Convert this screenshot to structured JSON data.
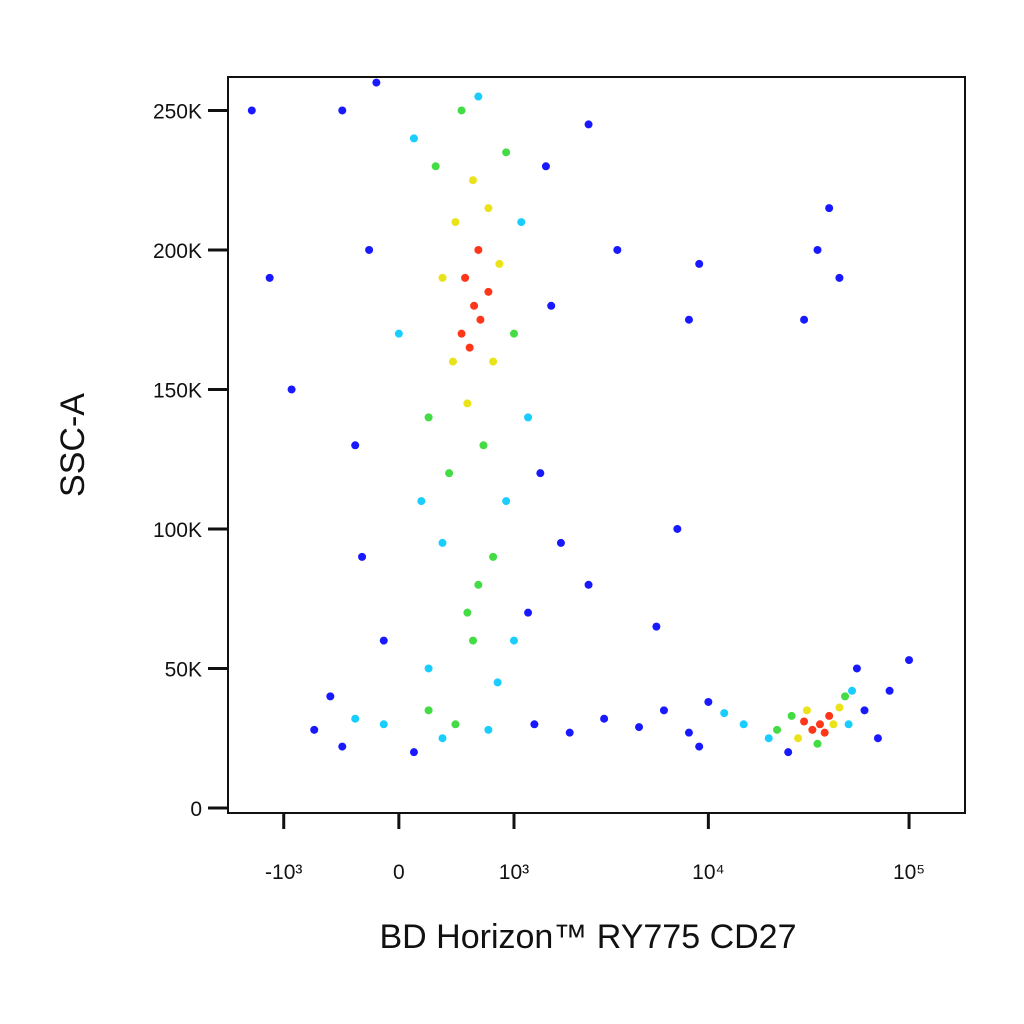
{
  "chart_data": {
    "type": "scatter",
    "x_label": "BD Horizon™ RY775 CD27",
    "y_label": "SSC-A",
    "xscale": "biexponential",
    "xlim": [
      -2000,
      190000
    ],
    "xticks": [
      {
        "value": -1000,
        "label": "-10³"
      },
      0,
      {
        "value": 1000,
        "label": "10³"
      },
      {
        "value": 10000,
        "label": "10⁴"
      },
      {
        "value": 100000,
        "label": "10⁵"
      }
    ],
    "ylim": [
      -1800,
      262000
    ],
    "yticks": [
      0,
      {
        "value": 50000,
        "label": "50K"
      },
      {
        "value": 100000,
        "label": "100K"
      },
      {
        "value": 150000,
        "label": "150K"
      },
      {
        "value": 200000,
        "label": "200K"
      },
      {
        "value": 250000,
        "label": "250K"
      }
    ],
    "series": [
      {
        "color": "#0000ff",
        "x": [
          -400,
          -200,
          1500,
          1600,
          -300,
          1400,
          -250,
          1800,
          -500,
          -650,
          -400,
          1300,
          2000,
          3000,
          4500,
          6000,
          8000,
          10000,
          9000,
          60000,
          80000,
          70000,
          25000,
          55000,
          -150,
          1200,
          -100,
          100,
          -1500,
          -1200,
          3500,
          9000,
          40000,
          7000,
          30000,
          2500,
          8000,
          45000,
          35000,
          -900,
          2500,
          5500,
          100000
        ],
        "y": [
          250000,
          200000,
          230000,
          180000,
          130000,
          120000,
          90000,
          95000,
          40000,
          28000,
          22000,
          30000,
          27000,
          32000,
          29000,
          35000,
          27000,
          38000,
          22000,
          35000,
          42000,
          25000,
          20000,
          50000,
          260000,
          70000,
          60000,
          20000,
          250000,
          190000,
          200000,
          195000,
          215000,
          100000,
          175000,
          245000,
          175000,
          190000,
          200000,
          150000,
          80000,
          65000,
          53000
        ]
      },
      {
        "color": "#00c8ff",
        "x": [
          100,
          1100,
          0,
          1200,
          150,
          900,
          300,
          1000,
          200,
          800,
          -100,
          -300,
          300,
          700,
          600,
          15000,
          52000,
          20000,
          50000,
          12000
        ],
        "y": [
          240000,
          210000,
          170000,
          140000,
          110000,
          110000,
          95000,
          60000,
          50000,
          45000,
          30000,
          32000,
          25000,
          28000,
          255000,
          30000,
          42000,
          25000,
          30000,
          34000
        ]
      },
      {
        "color": "#30d830",
        "x": [
          250,
          900,
          200,
          1000,
          450,
          650,
          350,
          600,
          500,
          750,
          400,
          200,
          550,
          22000,
          48000,
          26000,
          35000
        ],
        "y": [
          230000,
          235000,
          140000,
          170000,
          250000,
          130000,
          120000,
          80000,
          70000,
          90000,
          30000,
          35000,
          60000,
          28000,
          40000,
          33000,
          23000
        ]
      },
      {
        "color": "#e8e000",
        "x": [
          400,
          700,
          380,
          750,
          550,
          500,
          820,
          300,
          28000,
          45000,
          42000,
          31000
        ],
        "y": [
          210000,
          215000,
          160000,
          160000,
          225000,
          145000,
          195000,
          190000,
          25000,
          36000,
          30000,
          35000
        ]
      },
      {
        "color": "#ff2000",
        "x": [
          560,
          480,
          620,
          700,
          520,
          600,
          450,
          36000,
          33000,
          40000,
          30000,
          38000
        ],
        "y": [
          180000,
          190000,
          175000,
          185000,
          165000,
          200000,
          170000,
          30000,
          28000,
          33000,
          31000,
          27000
        ]
      }
    ]
  }
}
